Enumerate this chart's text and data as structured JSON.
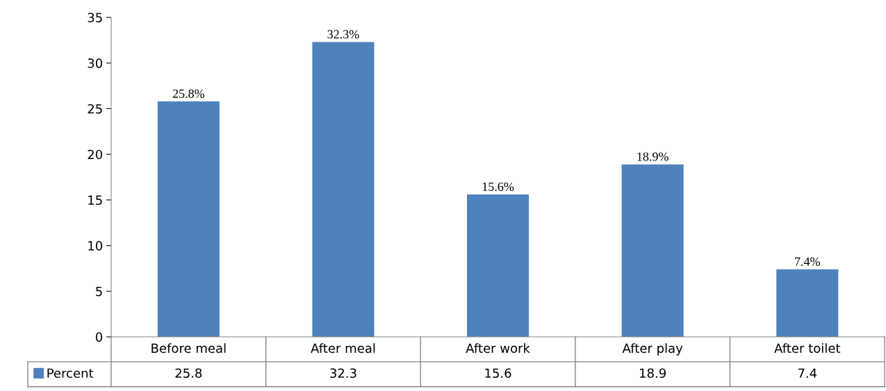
{
  "chart_data": {
    "type": "bar",
    "categories": [
      "Before meal",
      "After meal",
      "After work",
      "After play",
      "After toilet"
    ],
    "series": [
      {
        "name": "Percent",
        "color": "#4f81bd",
        "values": [
          25.8,
          32.3,
          15.6,
          18.9,
          7.4
        ],
        "value_labels": [
          "25.8%",
          "32.3%",
          "15.6%",
          "18.9%",
          "7.4%"
        ]
      }
    ],
    "ylim": [
      0,
      35
    ],
    "yticks": [
      0,
      5,
      10,
      15,
      20,
      25,
      30,
      35
    ],
    "grid": false,
    "annotations": [
      "25.8",
      "32.3",
      "15.6",
      "18.9",
      "7.4"
    ]
  }
}
